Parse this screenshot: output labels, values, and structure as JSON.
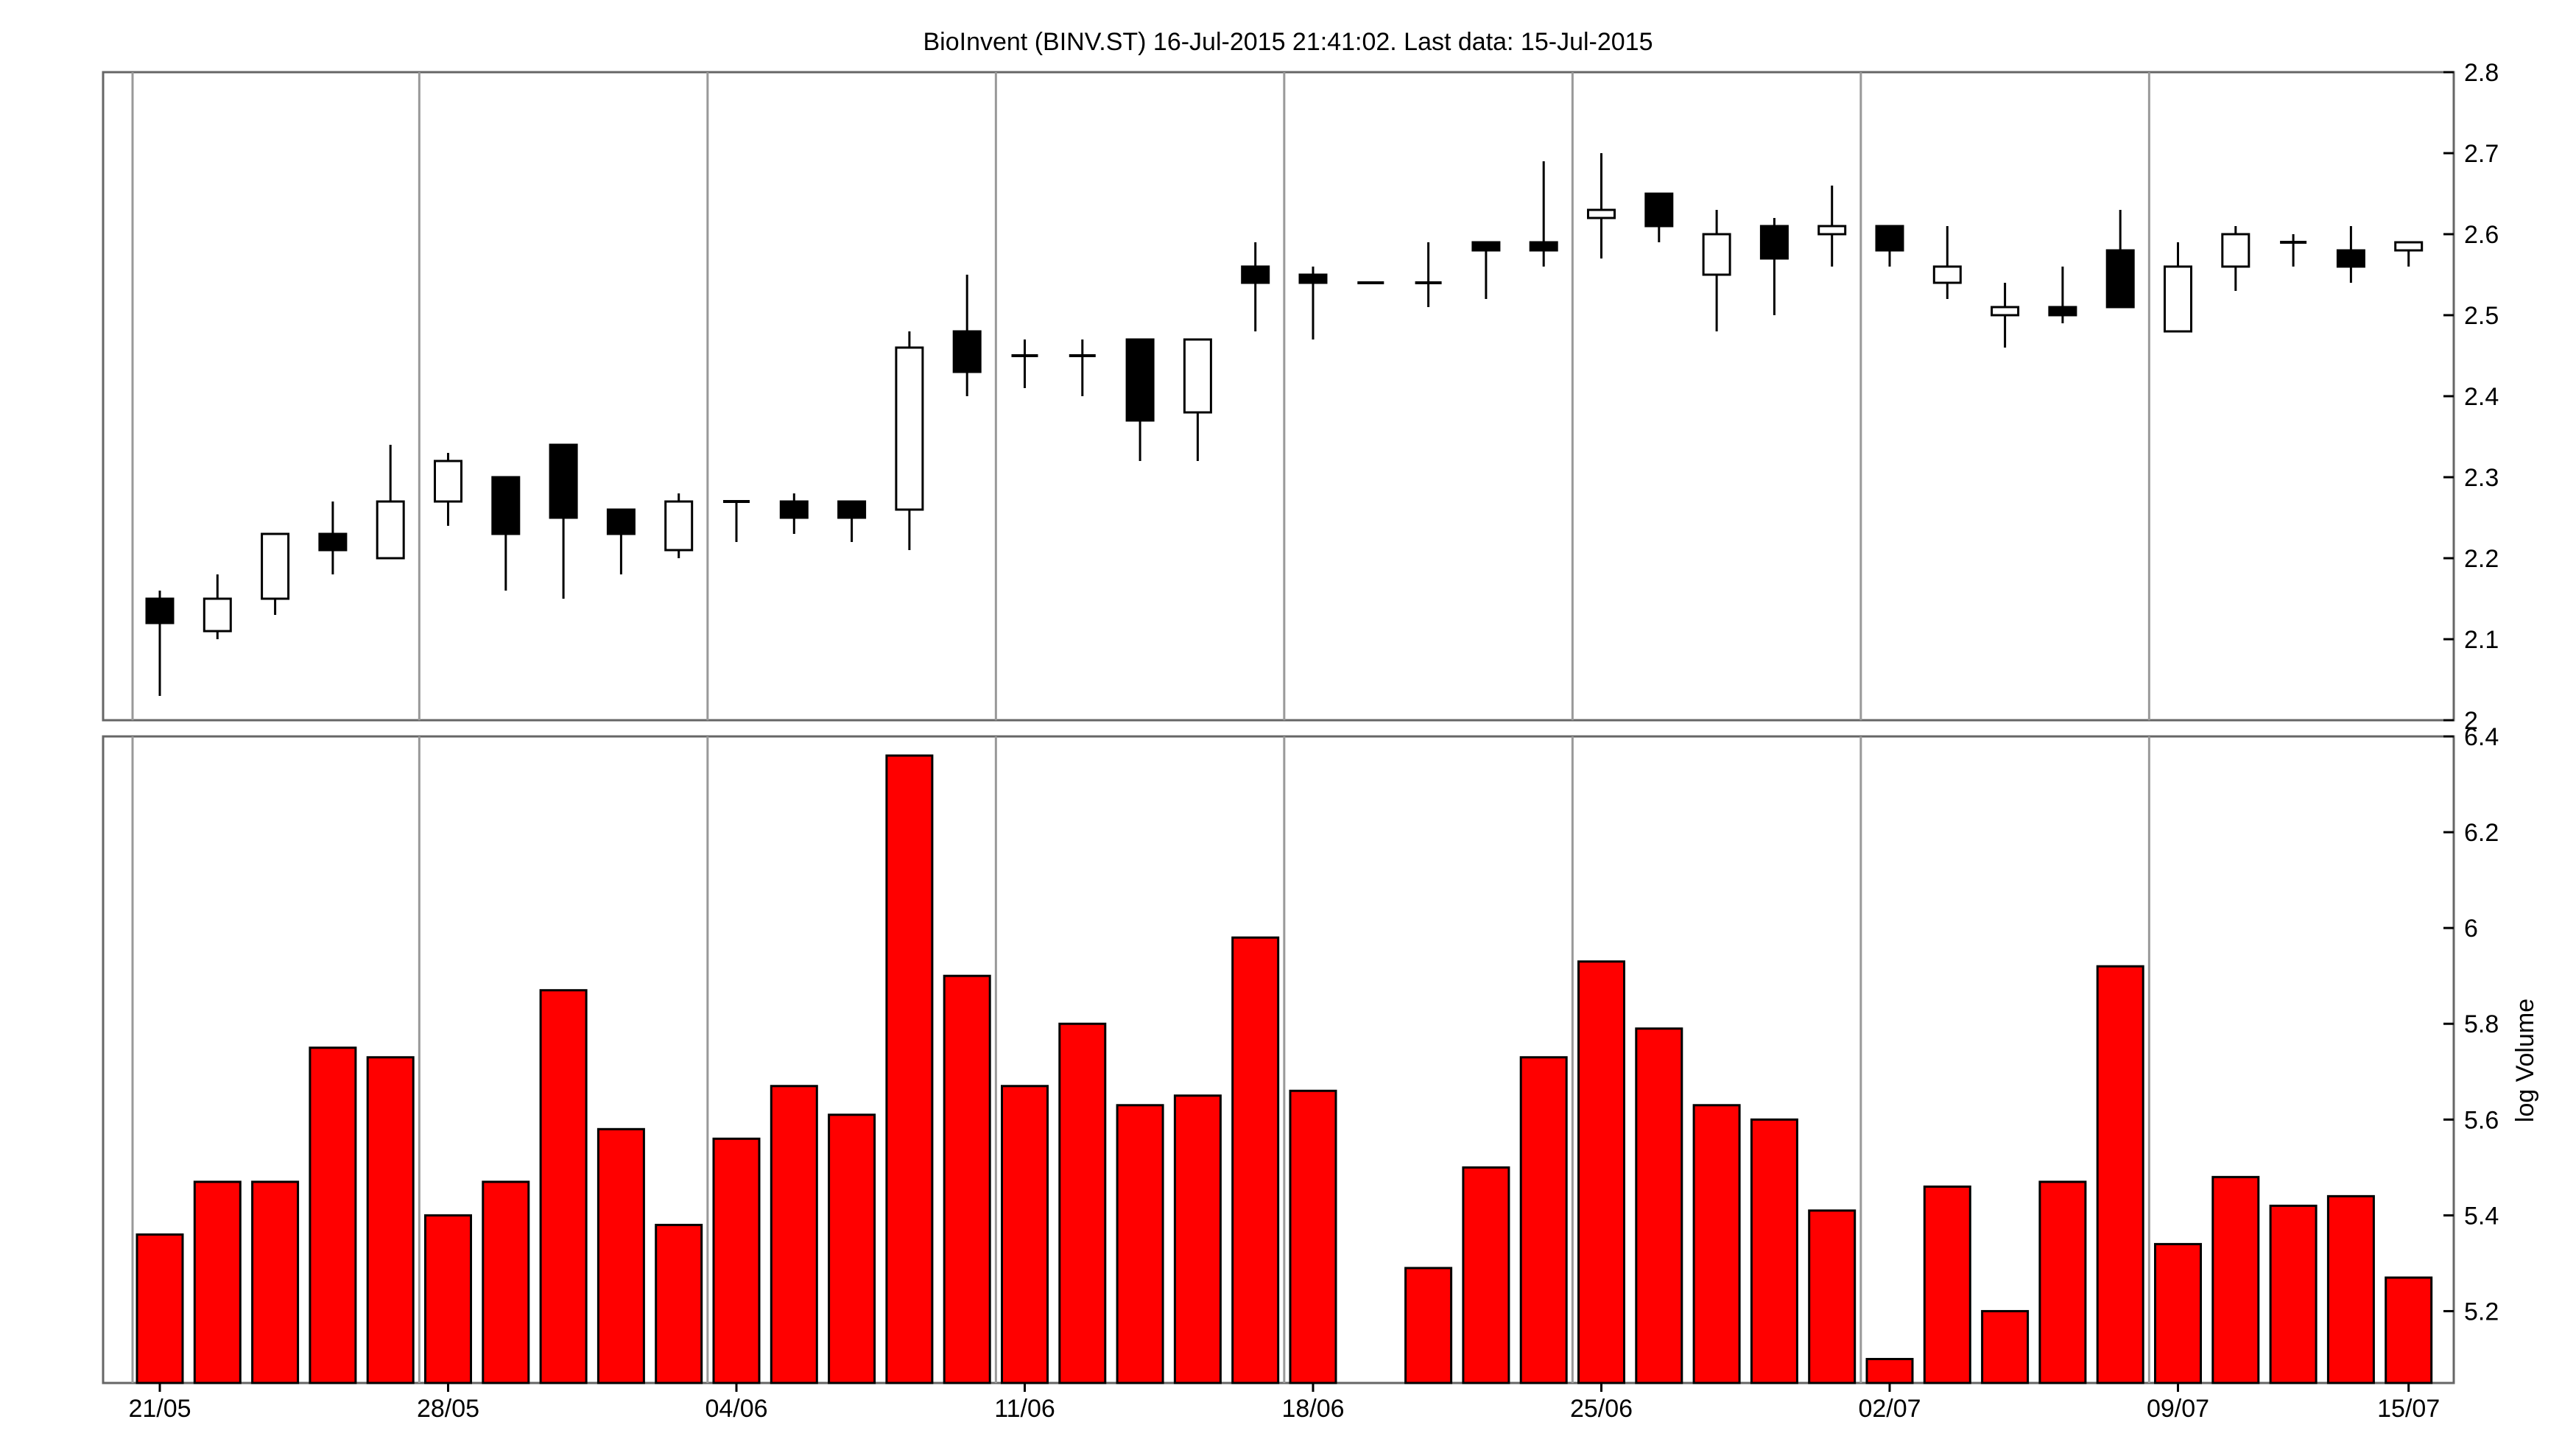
{
  "title": "BioInvent (BINV.ST) 16-Jul-2015 21:41:02. Last data: 15-Jul-2015",
  "chart_data": [
    {
      "type": "candlestick",
      "panel": "price",
      "title": "BioInvent (BINV.ST) 16-Jul-2015 21:41:02. Last data: 15-Jul-2015",
      "ylabel": "",
      "ylim": [
        2.0,
        2.8
      ],
      "yticks": [
        "2",
        "2.1",
        "2.2",
        "2.3",
        "2.4",
        "2.5",
        "2.6",
        "2.7",
        "2.8"
      ],
      "ytick_values": [
        2.0,
        2.1,
        2.2,
        2.3,
        2.4,
        2.5,
        2.6,
        2.7,
        2.8
      ],
      "y_axis_side": "right",
      "grid": "vertical-weekly",
      "colors": {
        "up_fill": "#ffffff",
        "down_fill": "#000000",
        "outline": "#000000",
        "grid": "#999999"
      },
      "series": [
        {
          "o": 2.15,
          "h": 2.16,
          "l": 2.03,
          "c": 2.12
        },
        {
          "o": 2.11,
          "h": 2.18,
          "l": 2.1,
          "c": 2.15
        },
        {
          "o": 2.15,
          "h": 2.23,
          "l": 2.13,
          "c": 2.23
        },
        {
          "o": 2.23,
          "h": 2.27,
          "l": 2.18,
          "c": 2.21
        },
        {
          "o": 2.2,
          "h": 2.34,
          "l": 2.2,
          "c": 2.27
        },
        {
          "o": 2.27,
          "h": 2.33,
          "l": 2.24,
          "c": 2.32
        },
        {
          "o": 2.3,
          "h": 2.3,
          "l": 2.16,
          "c": 2.23
        },
        {
          "o": 2.34,
          "h": 2.34,
          "l": 2.15,
          "c": 2.25
        },
        {
          "o": 2.26,
          "h": 2.26,
          "l": 2.18,
          "c": 2.23
        },
        {
          "o": 2.21,
          "h": 2.28,
          "l": 2.2,
          "c": 2.27
        },
        {
          "o": 2.27,
          "h": 2.27,
          "l": 2.22,
          "c": 2.27
        },
        {
          "o": 2.27,
          "h": 2.28,
          "l": 2.23,
          "c": 2.25
        },
        {
          "o": 2.27,
          "h": 2.27,
          "l": 2.22,
          "c": 2.25
        },
        {
          "o": 2.26,
          "h": 2.48,
          "l": 2.21,
          "c": 2.46
        },
        {
          "o": 2.48,
          "h": 2.55,
          "l": 2.4,
          "c": 2.43
        },
        {
          "o": 2.45,
          "h": 2.47,
          "l": 2.41,
          "c": 2.45
        },
        {
          "o": 2.45,
          "h": 2.47,
          "l": 2.4,
          "c": 2.45
        },
        {
          "o": 2.47,
          "h": 2.47,
          "l": 2.32,
          "c": 2.37
        },
        {
          "o": 2.38,
          "h": 2.47,
          "l": 2.32,
          "c": 2.47
        },
        {
          "o": 2.56,
          "h": 2.59,
          "l": 2.48,
          "c": 2.54
        },
        {
          "o": 2.55,
          "h": 2.56,
          "l": 2.47,
          "c": 2.54
        },
        {
          "o": 2.54,
          "h": 2.54,
          "l": 2.54,
          "c": 2.54
        },
        {
          "o": 2.54,
          "h": 2.59,
          "l": 2.51,
          "c": 2.54
        },
        {
          "o": 2.59,
          "h": 2.59,
          "l": 2.52,
          "c": 2.58
        },
        {
          "o": 2.59,
          "h": 2.69,
          "l": 2.56,
          "c": 2.58
        },
        {
          "o": 2.62,
          "h": 2.7,
          "l": 2.57,
          "c": 2.63
        },
        {
          "o": 2.65,
          "h": 2.65,
          "l": 2.59,
          "c": 2.61
        },
        {
          "o": 2.55,
          "h": 2.63,
          "l": 2.48,
          "c": 2.6
        },
        {
          "o": 2.61,
          "h": 2.62,
          "l": 2.5,
          "c": 2.57
        },
        {
          "o": 2.6,
          "h": 2.66,
          "l": 2.56,
          "c": 2.61
        },
        {
          "o": 2.61,
          "h": 2.61,
          "l": 2.56,
          "c": 2.58
        },
        {
          "o": 2.54,
          "h": 2.61,
          "l": 2.52,
          "c": 2.56
        },
        {
          "o": 2.5,
          "h": 2.54,
          "l": 2.46,
          "c": 2.51
        },
        {
          "o": 2.51,
          "h": 2.56,
          "l": 2.49,
          "c": 2.5
        },
        {
          "o": 2.58,
          "h": 2.63,
          "l": 2.51,
          "c": 2.51
        },
        {
          "o": 2.48,
          "h": 2.59,
          "l": 2.48,
          "c": 2.56
        },
        {
          "o": 2.56,
          "h": 2.61,
          "l": 2.53,
          "c": 2.6
        },
        {
          "o": 2.59,
          "h": 2.6,
          "l": 2.56,
          "c": 2.59
        },
        {
          "o": 2.58,
          "h": 2.61,
          "l": 2.54,
          "c": 2.56
        },
        {
          "o": 2.58,
          "h": 2.59,
          "l": 2.56,
          "c": 2.59
        }
      ]
    },
    {
      "type": "bar",
      "panel": "volume",
      "ylabel": "log Volume",
      "ylim": [
        5.05,
        6.4
      ],
      "yticks": [
        "5.2",
        "5.4",
        "5.6",
        "5.8",
        "6",
        "6.2",
        "6.4"
      ],
      "ytick_values": [
        5.2,
        5.4,
        5.6,
        5.8,
        6.0,
        6.2,
        6.4
      ],
      "y_axis_side": "right",
      "grid": "vertical-weekly",
      "colors": {
        "bar_fill": "#ff0000",
        "bar_outline": "#000000",
        "grid": "#999999"
      },
      "values": [
        5.36,
        5.47,
        5.47,
        5.75,
        5.73,
        5.4,
        5.47,
        5.87,
        5.58,
        5.38,
        5.56,
        5.67,
        5.61,
        6.36,
        5.9,
        5.67,
        5.8,
        5.63,
        5.65,
        5.98,
        5.66,
        null,
        5.29,
        5.5,
        5.73,
        5.93,
        5.79,
        5.63,
        5.6,
        5.41,
        5.1,
        5.46,
        5.2,
        5.47,
        5.92,
        5.34,
        5.48,
        5.42,
        5.44,
        5.27
      ],
      "x_tick_labels": [
        "21/05",
        "28/05",
        "04/06",
        "11/06",
        "18/06",
        "25/06",
        "02/07",
        "09/07",
        "15/07"
      ]
    }
  ]
}
